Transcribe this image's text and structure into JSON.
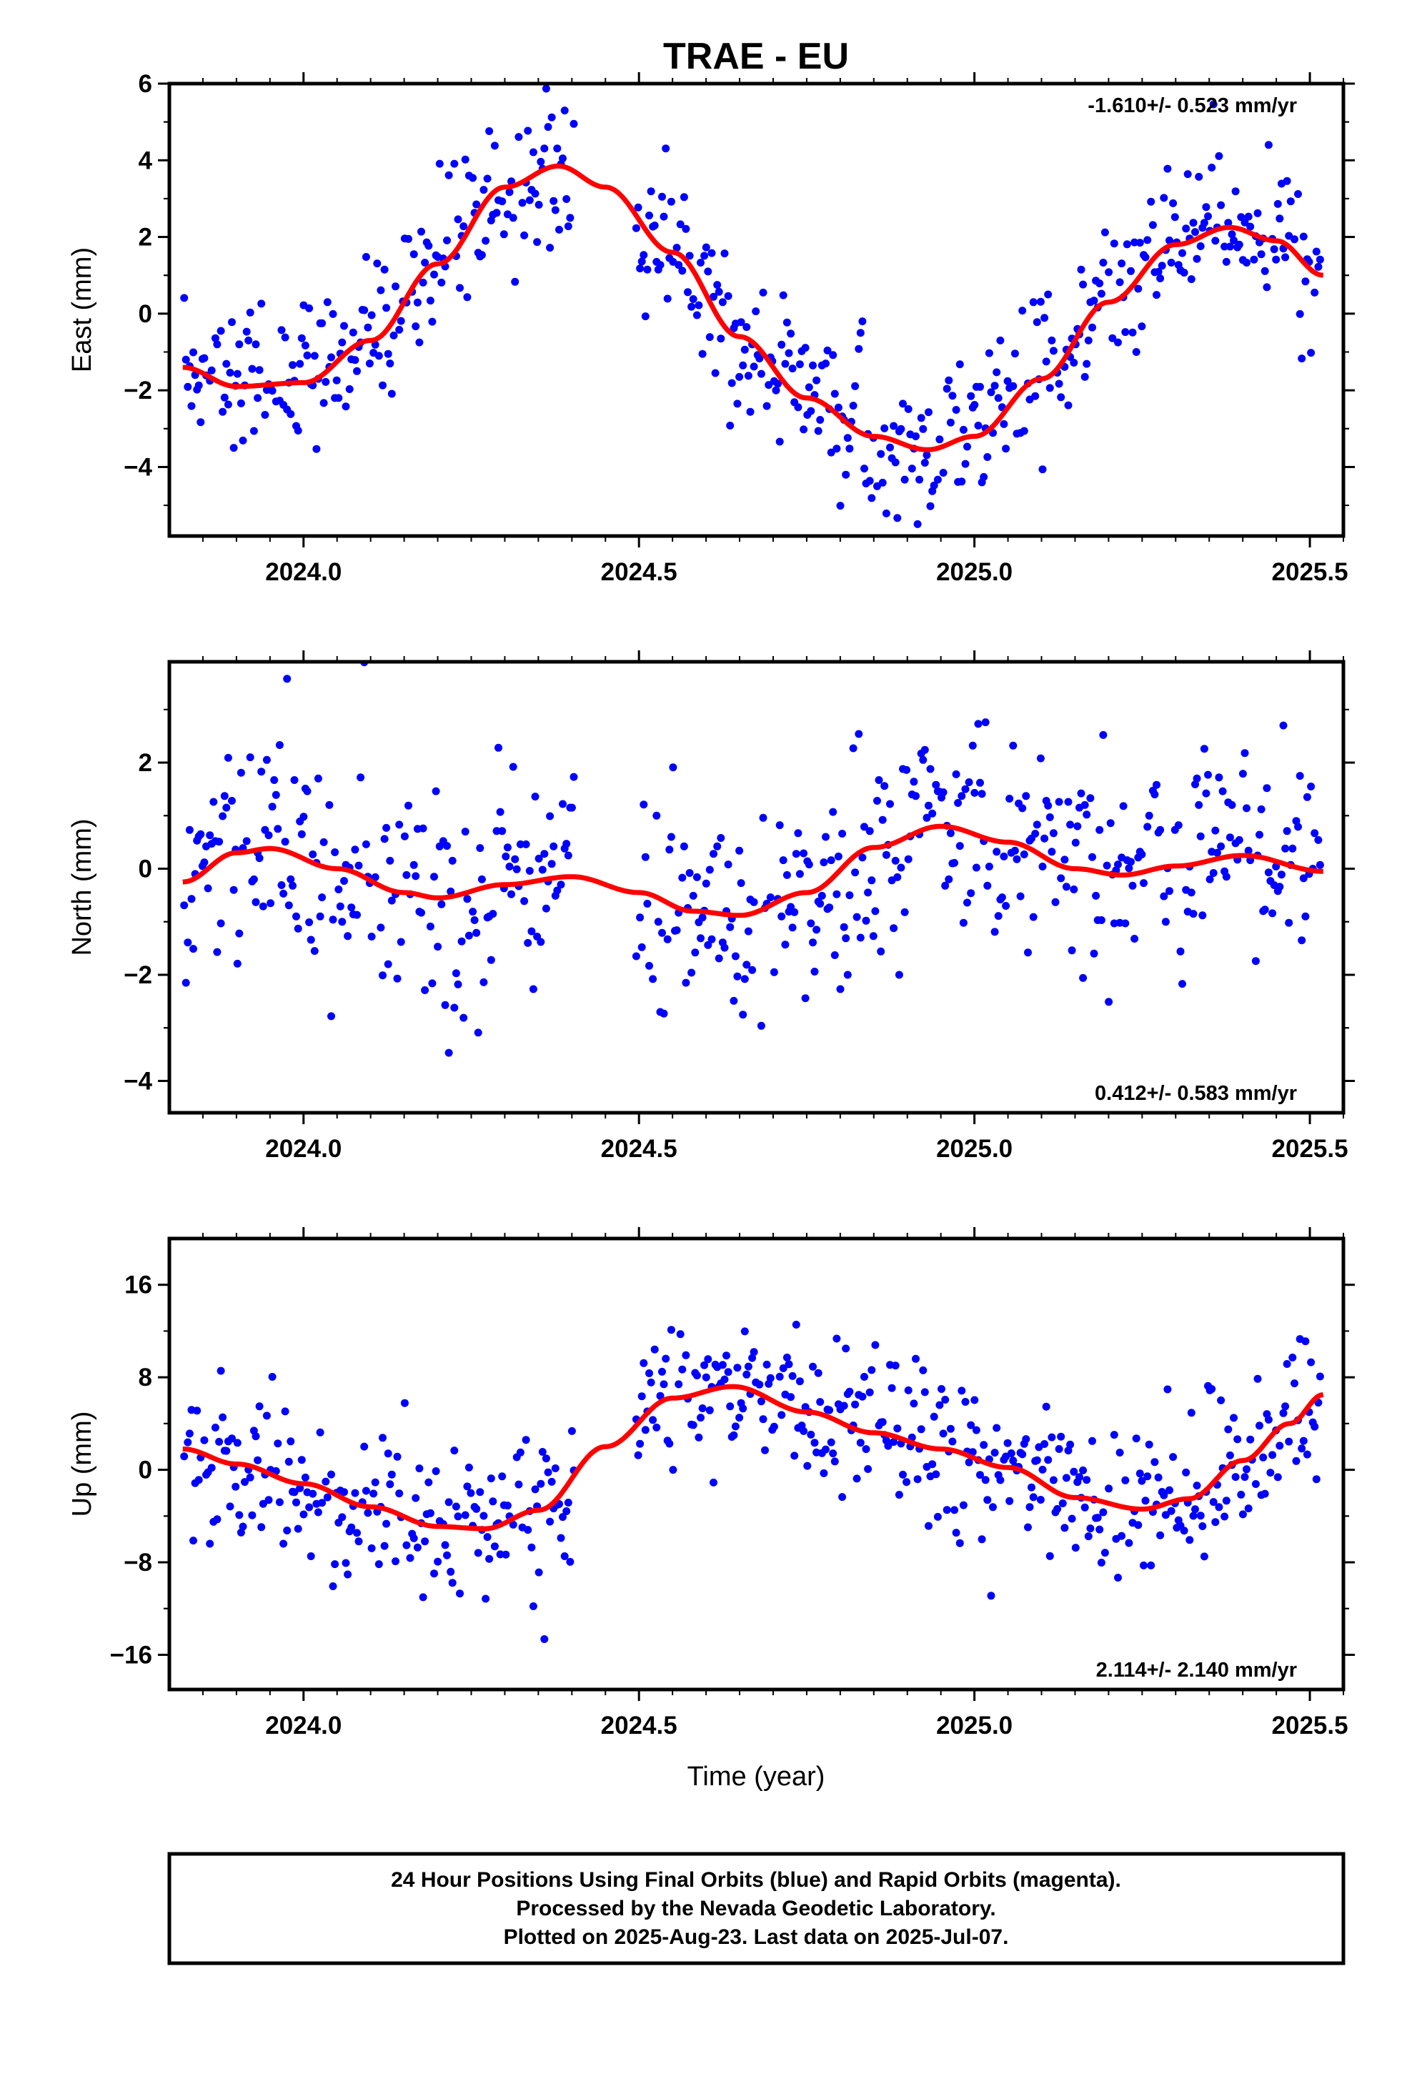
{
  "chart_data": {
    "type": "scatter",
    "title": "TRAE - EU",
    "xlabel": "Time (year)",
    "colors": {
      "final_orbits": "#0000ff",
      "fit": "#ff0000",
      "frame": "#000000"
    },
    "x_ticks": [
      "2024.0",
      "2024.5",
      "2025.0",
      "2025.5"
    ],
    "xlim": [
      2023.8,
      2025.55
    ],
    "panels": [
      {
        "ylabel": "East (mm)",
        "ylim": [
          -5.8,
          6.0
        ],
        "y_ticks": [
          -4,
          -2,
          0,
          2,
          4,
          6
        ],
        "y_tick_labels": [
          "−4",
          "−2",
          "0",
          "2",
          "4",
          "6"
        ],
        "rate_label": "-1.610+/- 0.523 mm/yr",
        "rate_position": "top-right",
        "fit_curve": {
          "x": [
            2023.82,
            2023.9,
            2024.0,
            2024.1,
            2024.2,
            2024.3,
            2024.38,
            2024.45,
            2024.55,
            2024.65,
            2024.75,
            2024.85,
            2024.93,
            2025.0,
            2025.1,
            2025.2,
            2025.3,
            2025.38,
            2025.45,
            2025.52
          ],
          "y": [
            -1.4,
            -1.9,
            -1.8,
            -0.7,
            1.3,
            3.3,
            3.85,
            3.3,
            1.6,
            -0.6,
            -2.2,
            -3.2,
            -3.55,
            -3.2,
            -1.7,
            0.3,
            1.8,
            2.25,
            1.9,
            1.0
          ]
        },
        "series": [
          {
            "name": "Final Orbits",
            "x": [],
            "y": []
          }
        ]
      },
      {
        "ylabel": "North (mm)",
        "ylim": [
          -4.6,
          3.9
        ],
        "y_ticks": [
          -4,
          -2,
          0,
          2
        ],
        "y_tick_labels": [
          "−4",
          "−2",
          "0",
          "2"
        ],
        "rate_label": "0.412+/- 0.583 mm/yr",
        "rate_position": "bottom-right",
        "fit_curve": {
          "x": [
            2023.82,
            2023.9,
            2023.95,
            2024.05,
            2024.15,
            2024.2,
            2024.3,
            2024.4,
            2024.5,
            2024.58,
            2024.65,
            2024.75,
            2024.85,
            2024.95,
            2025.05,
            2025.15,
            2025.22,
            2025.3,
            2025.4,
            2025.52
          ],
          "y": [
            -0.25,
            0.3,
            0.38,
            0.0,
            -0.45,
            -0.55,
            -0.3,
            -0.15,
            -0.45,
            -0.8,
            -0.88,
            -0.45,
            0.4,
            0.8,
            0.5,
            0.0,
            -0.12,
            0.05,
            0.25,
            -0.05
          ]
        },
        "series": [
          {
            "name": "Final Orbits",
            "x": [],
            "y": []
          }
        ]
      },
      {
        "ylabel": "Up (mm)",
        "ylim": [
          -19,
          20
        ],
        "y_ticks": [
          -16,
          -8,
          0,
          8,
          16
        ],
        "y_tick_labels": [
          "−16",
          "−8",
          "0",
          "8",
          "16"
        ],
        "rate_label": "2.114+/- 2.140 mm/yr",
        "rate_position": "bottom-right",
        "fit_curve": {
          "x": [
            2023.82,
            2023.9,
            2024.0,
            2024.1,
            2024.2,
            2024.27,
            2024.35,
            2024.45,
            2024.55,
            2024.64,
            2024.75,
            2024.85,
            2024.95,
            2025.05,
            2025.15,
            2025.25,
            2025.32,
            2025.4,
            2025.47,
            2025.52
          ],
          "y": [
            1.8,
            0.5,
            -1.2,
            -3.2,
            -4.9,
            -5.1,
            -3.5,
            2.0,
            6.2,
            7.2,
            5.0,
            3.2,
            1.8,
            0.2,
            -2.4,
            -3.4,
            -2.5,
            0.8,
            4.0,
            6.5
          ]
        },
        "series": [
          {
            "name": "Final Orbits",
            "x": [],
            "y": []
          }
        ]
      }
    ]
  },
  "footer": {
    "line1": "24 Hour Positions Using Final Orbits (blue) and Rapid Orbits (magenta).",
    "line2": "Processed by the Nevada Geodetic Laboratory.",
    "line3": "Plotted on 2025-Aug-23. Last data on 2025-Jul-07."
  }
}
